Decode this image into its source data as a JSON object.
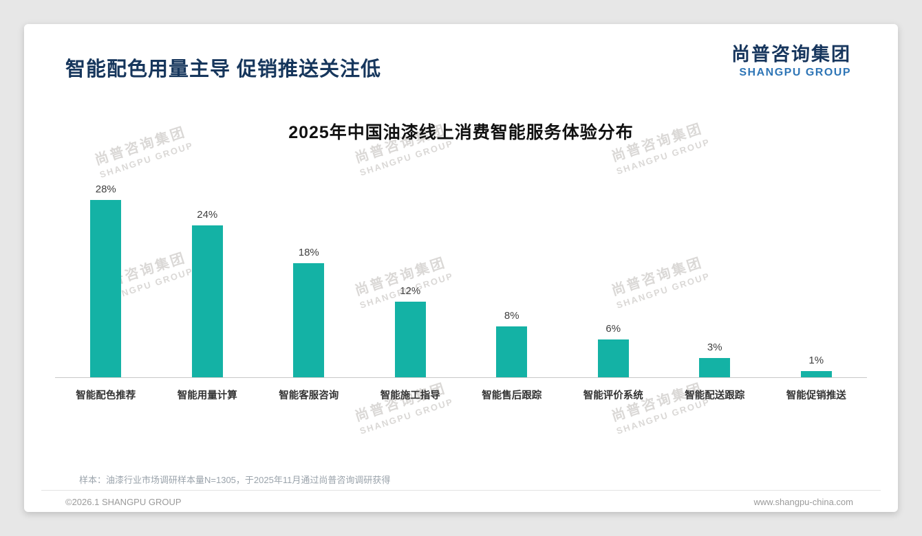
{
  "header": {
    "title": "智能配色用量主导 促销推送关注低"
  },
  "logo": {
    "name_cn": "尚普咨询集团",
    "name_en": "SHANGPU GROUP"
  },
  "chart_data": {
    "type": "bar",
    "title": "2025年中国油漆线上消费智能服务体验分布",
    "categories": [
      "智能配色推荐",
      "智能用量计算",
      "智能客服咨询",
      "智能施工指导",
      "智能售后跟踪",
      "智能评价系统",
      "智能配送跟踪",
      "智能促销推送"
    ],
    "values": [
      28,
      24,
      18,
      12,
      8,
      6,
      3,
      1
    ],
    "value_labels": [
      "28%",
      "24%",
      "18%",
      "12%",
      "8%",
      "6%",
      "3%",
      "1%"
    ],
    "unit": "%",
    "bar_color": "#14b2a5",
    "ylim": [
      0,
      30
    ],
    "grid": false,
    "legend": "none",
    "value_labels_shown": true
  },
  "watermark": {
    "line1": "尚普咨询集团",
    "line2": "SHANGPU GROUP"
  },
  "footer": {
    "sample_note": "样本：油漆行业市场调研样本量N=1305，于2025年11月通过尚普咨询调研获得",
    "copyright": "©2026.1 SHANGPU GROUP",
    "website": "www.shangpu-china.com"
  }
}
